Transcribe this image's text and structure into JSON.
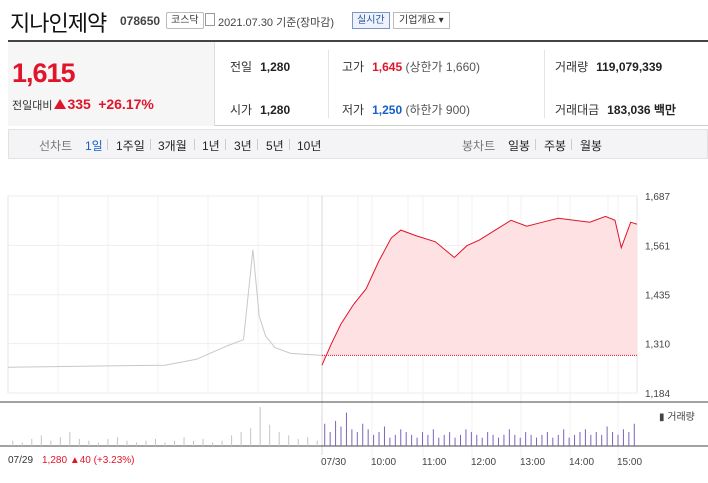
{
  "header": {
    "stock_name": "지나인제약",
    "stock_code": "078650",
    "market_tag": "코스닥",
    "date_text": "2021.07.30 기준(장마감)",
    "realtime_label": "실시간",
    "company_label": "기업개요 ▾"
  },
  "summary": {
    "current_price": "1,615",
    "diff_label": "전일대비",
    "diff_value": "335",
    "diff_rate": "+26.17%",
    "prev_close_label": "전일",
    "prev_close": "1,280",
    "open_label": "시가",
    "open": "1,280",
    "high_label": "고가",
    "high": "1,645",
    "upper_limit": "(상한가 1,660)",
    "low_label": "저가",
    "low": "1,250",
    "lower_limit": "(하한가 900)",
    "volume_label": "거래량",
    "volume": "119,079,339",
    "amount_label": "거래대금",
    "amount": "183,036 백만"
  },
  "tabs": {
    "line_chart_label": "선차트",
    "line_periods": [
      "1일",
      "1주일",
      "3개월",
      "1년",
      "3년",
      "5년",
      "10년"
    ],
    "active_period": "1일",
    "candle_chart_label": "봉차트",
    "candle_periods": [
      "일봉",
      "주봉",
      "월봉"
    ]
  },
  "chart_data": {
    "type": "line",
    "prev_close": 1280,
    "ylim": [
      1184,
      1687
    ],
    "y_ticks": [
      "1,687",
      "1,561",
      "1,435",
      "1,310",
      "1,184"
    ],
    "x_labels": [
      "07/30",
      "10:00",
      "11:00",
      "12:00",
      "13:00",
      "14:00",
      "15:00"
    ],
    "volume_label": "거래량",
    "prev_day": {
      "label": "07/29",
      "close_text": "1,280",
      "change_text": "40",
      "rate_text": "(+3.23%)",
      "x": [
        0,
        0.5,
        0.6,
        0.7,
        0.75,
        0.78,
        0.8,
        0.82,
        0.85,
        0.9,
        1.0
      ],
      "y": [
        1250,
        1255,
        1270,
        1305,
        1320,
        1550,
        1380,
        1330,
        1300,
        1285,
        1280
      ]
    },
    "today": {
      "x": [
        0,
        0.03,
        0.06,
        0.1,
        0.14,
        0.18,
        0.22,
        0.25,
        0.3,
        0.36,
        0.42,
        0.46,
        0.5,
        0.55,
        0.6,
        0.65,
        0.7,
        0.75,
        0.8,
        0.85,
        0.9,
        0.93,
        0.95,
        0.98,
        1.0
      ],
      "y": [
        1255,
        1310,
        1360,
        1410,
        1450,
        1520,
        1580,
        1600,
        1585,
        1570,
        1530,
        1560,
        1575,
        1600,
        1625,
        1610,
        1620,
        1630,
        1625,
        1620,
        1635,
        1625,
        1555,
        1620,
        1615
      ]
    },
    "volume_profile": [
      3,
      2,
      4,
      6,
      3,
      5,
      8,
      4,
      3,
      2,
      4,
      5,
      3,
      2,
      3,
      4,
      2,
      3,
      5,
      3,
      4,
      2,
      3,
      6,
      8,
      10,
      22,
      12,
      8,
      6,
      4,
      5,
      3
    ],
    "volume_today": [
      8,
      5,
      9,
      7,
      12,
      6,
      5,
      8,
      6,
      4,
      5,
      7,
      3,
      4,
      6,
      5,
      4,
      3,
      5,
      4,
      6,
      3,
      4,
      5,
      3,
      4,
      6,
      5,
      4,
      3,
      5,
      4,
      3,
      4,
      6,
      4,
      3,
      5,
      4,
      3,
      4,
      5,
      3,
      4,
      6,
      3,
      4,
      5,
      6,
      4,
      5,
      4,
      7,
      5,
      4,
      6,
      5,
      8
    ]
  }
}
